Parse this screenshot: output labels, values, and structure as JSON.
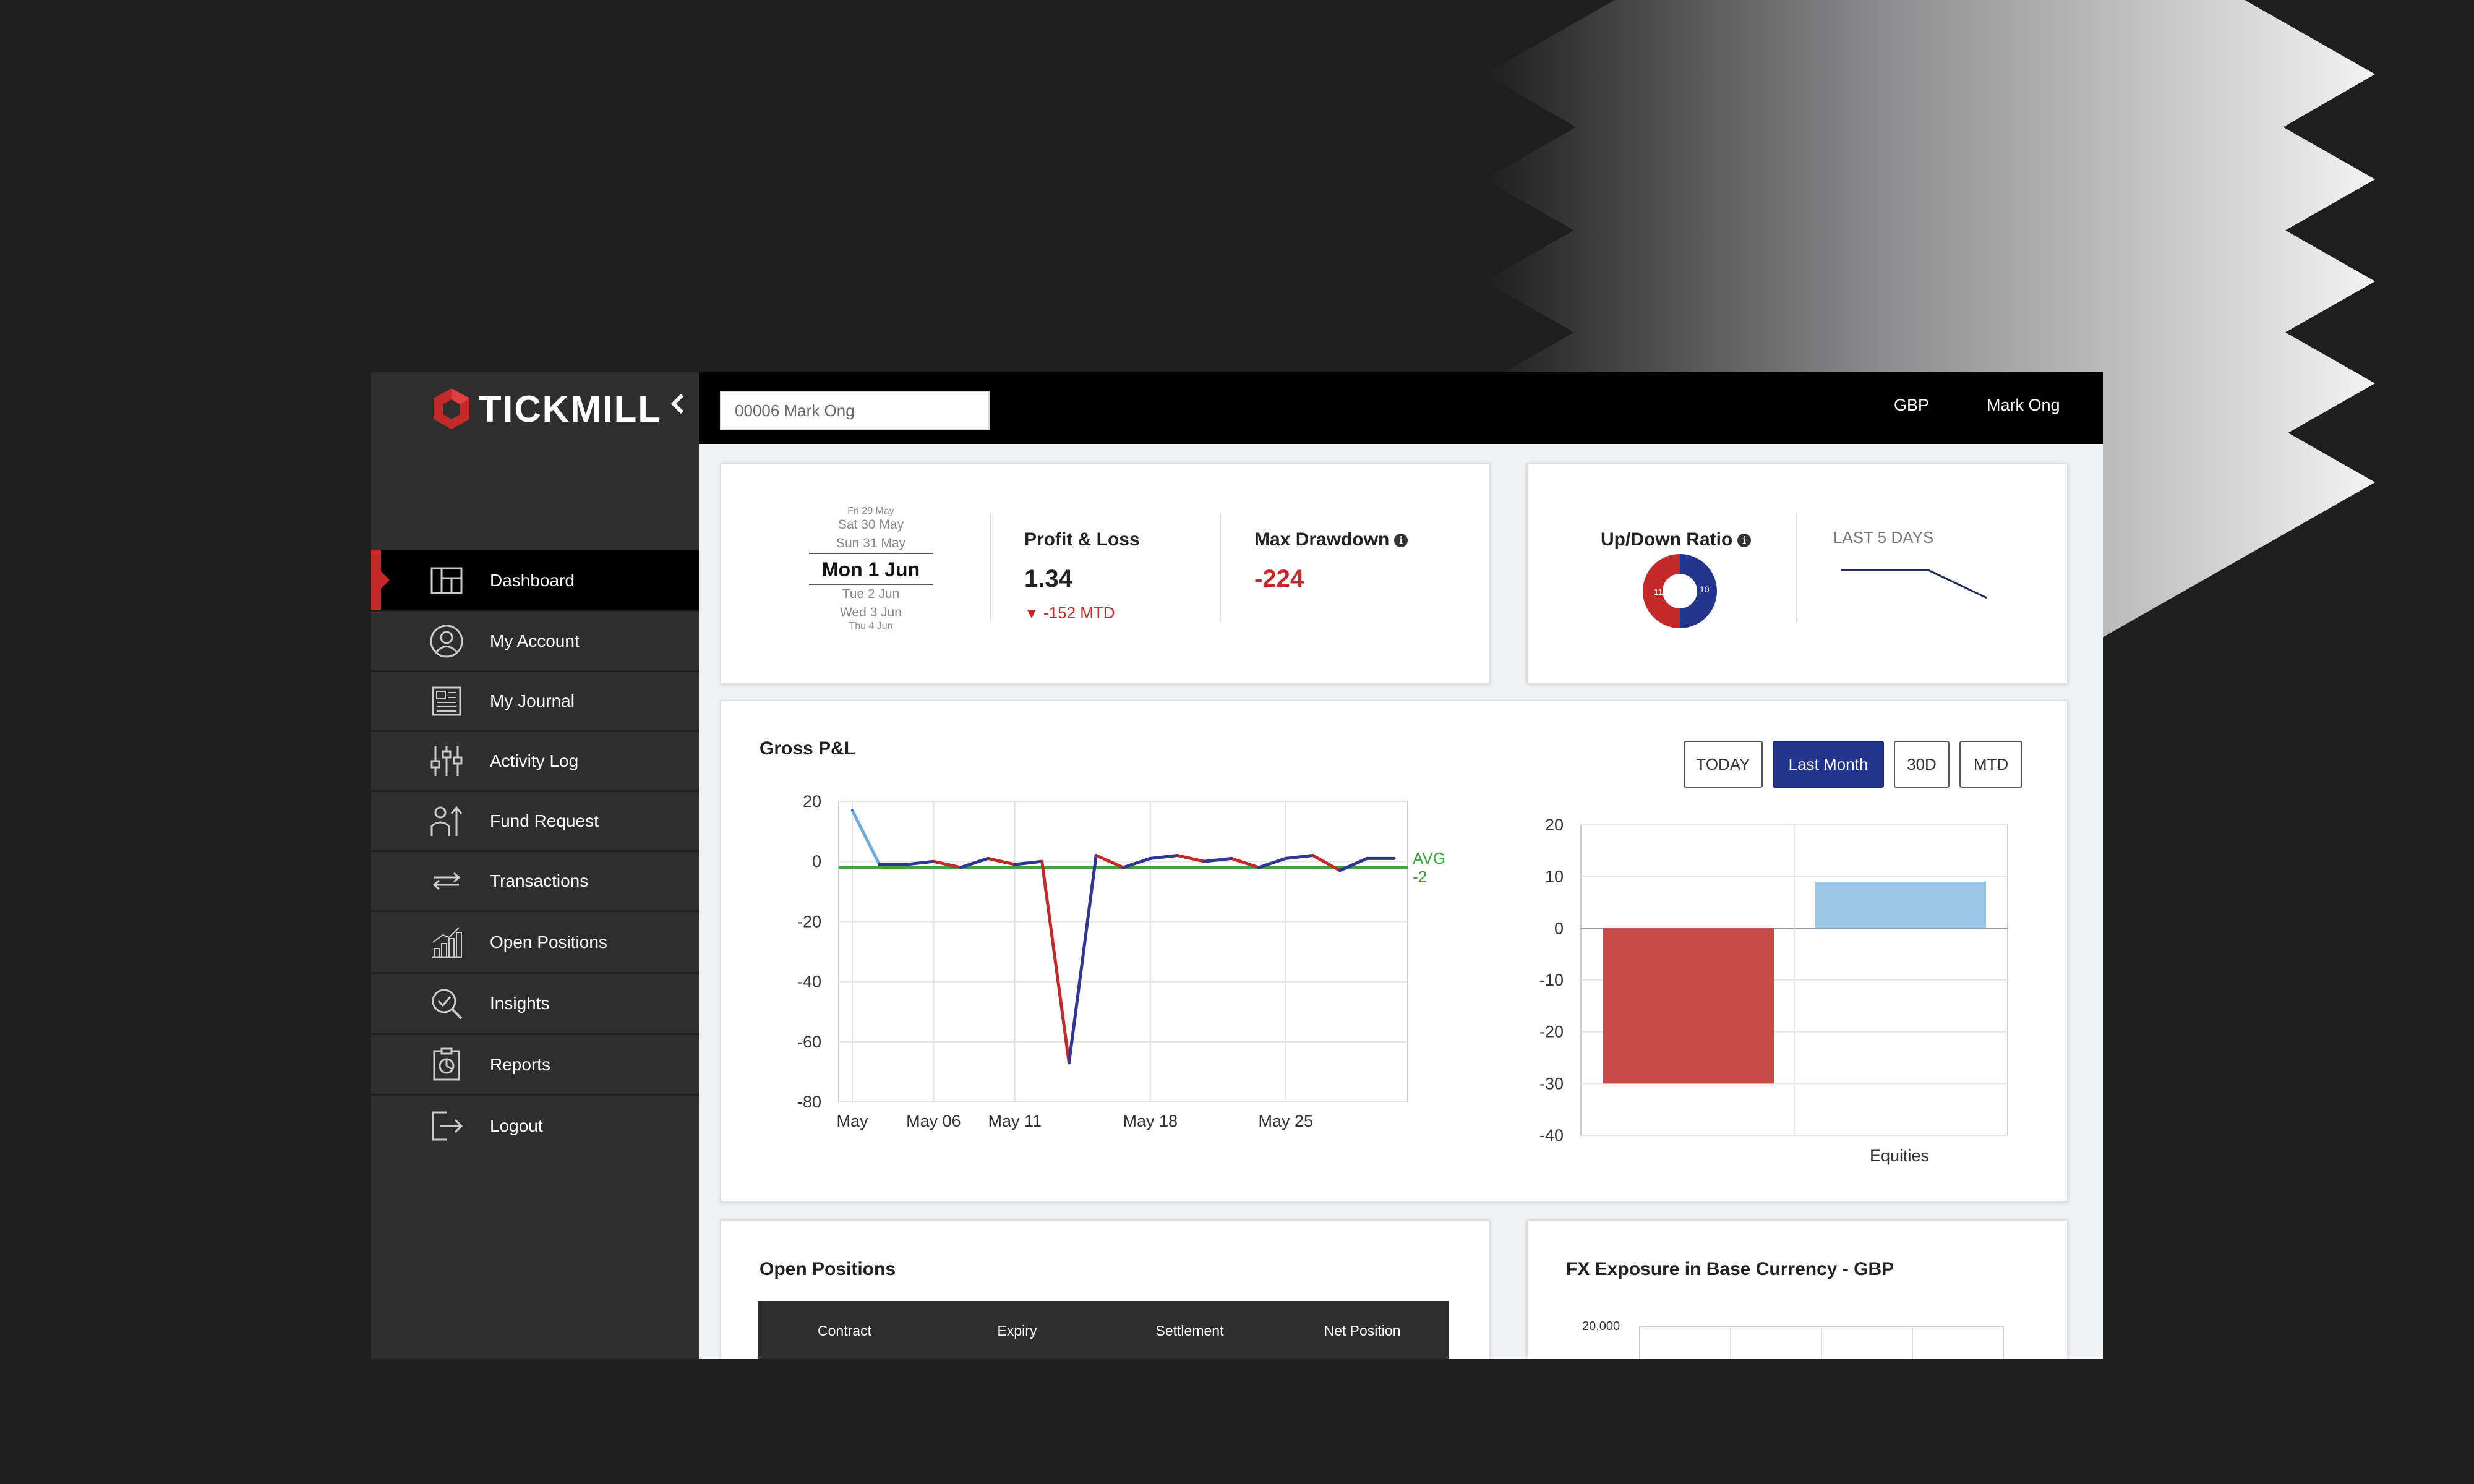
{
  "app": {
    "brand": "TICKMILL",
    "account_selector": "00006 Mark Ong",
    "currency": "GBP",
    "user_name": "Mark Ong"
  },
  "sidebar": {
    "items": [
      {
        "label": "Dashboard",
        "icon": "dashboard-icon",
        "active": true
      },
      {
        "label": "My Account",
        "icon": "user-icon",
        "active": false
      },
      {
        "label": "My Journal",
        "icon": "journal-icon",
        "active": false
      },
      {
        "label": "Activity Log",
        "icon": "sliders-icon",
        "active": false
      },
      {
        "label": "Fund Request",
        "icon": "fund-request-icon",
        "active": false
      },
      {
        "label": "Transactions",
        "icon": "transfer-arrows-icon",
        "active": false
      },
      {
        "label": "Open Positions",
        "icon": "bar-growth-icon",
        "active": false
      },
      {
        "label": "Insights",
        "icon": "magnifier-check-icon",
        "active": false
      },
      {
        "label": "Reports",
        "icon": "report-clipboard-icon",
        "active": false
      },
      {
        "label": "Logout",
        "icon": "logout-icon",
        "active": false
      }
    ]
  },
  "date_picker": {
    "rows_above": [
      "Fri 29 May",
      "Sat 30 May",
      "Sun 31 May"
    ],
    "selected": "Mon 1 Jun",
    "rows_below": [
      "Tue 2 Jun",
      "Wed 3 Jun",
      "Thu 4 Jun"
    ]
  },
  "kpi": {
    "pnl_title": "Profit & Loss",
    "pnl_value": "1.34",
    "pnl_delta": "-152 MTD",
    "drawdown_title": "Max Drawdown",
    "drawdown_value": "-224",
    "ratio_title": "Up/Down Ratio",
    "ratio_up": "11",
    "ratio_down": "10",
    "last5_label": "LAST 5 DAYS"
  },
  "gross_pnl": {
    "title": "Gross P&L",
    "buttons": [
      "TODAY",
      "Last Month",
      "30D",
      "MTD"
    ],
    "active_button": "Last Month"
  },
  "open_positions": {
    "title": "Open Positions",
    "columns": [
      "Contract",
      "Expiry",
      "Settlement",
      "Net Position"
    ]
  },
  "fx_exposure": {
    "title": "FX Exposure in Base Currency - GBP",
    "ytick_top": "20,000"
  },
  "colors": {
    "accent": "#23348f",
    "negative": "#c42a2a",
    "positive_bar": "#9ac7e6",
    "avg_line": "#3aa33a",
    "sidebar": "#2e2e2f"
  },
  "chart_data": [
    {
      "type": "line",
      "title": "Gross P&L",
      "x_ticks": [
        "May",
        "May 06",
        "May 11",
        "May 18",
        "May 25"
      ],
      "y_ticks": [
        20,
        0,
        -20,
        -40,
        -60,
        -80
      ],
      "ylim": [
        -80,
        20
      ],
      "x": [
        0,
        1,
        2,
        3,
        4,
        5,
        6,
        7,
        8,
        9,
        10,
        11,
        12,
        13,
        14,
        15,
        16,
        17,
        18,
        19,
        20
      ],
      "series": [
        {
          "values": [
            17,
            -1,
            -1,
            0,
            -2,
            1,
            -1,
            0,
            -67,
            2,
            -2,
            1,
            2,
            0,
            1,
            -2,
            1,
            2,
            -3,
            1,
            1
          ]
        }
      ],
      "avg_label": "AVG",
      "avg_value": "-2",
      "avg": -2
    },
    {
      "type": "bar",
      "categories": [
        "",
        "Equities"
      ],
      "values": [
        -30,
        9
      ],
      "y_ticks": [
        20,
        10,
        0,
        -10,
        -20,
        -30,
        -40
      ],
      "ylim": [
        -40,
        20
      ]
    },
    {
      "type": "line",
      "title": "LAST 5 DAYS",
      "values": [
        2,
        2,
        2,
        2,
        1.6,
        1.2
      ]
    }
  ]
}
